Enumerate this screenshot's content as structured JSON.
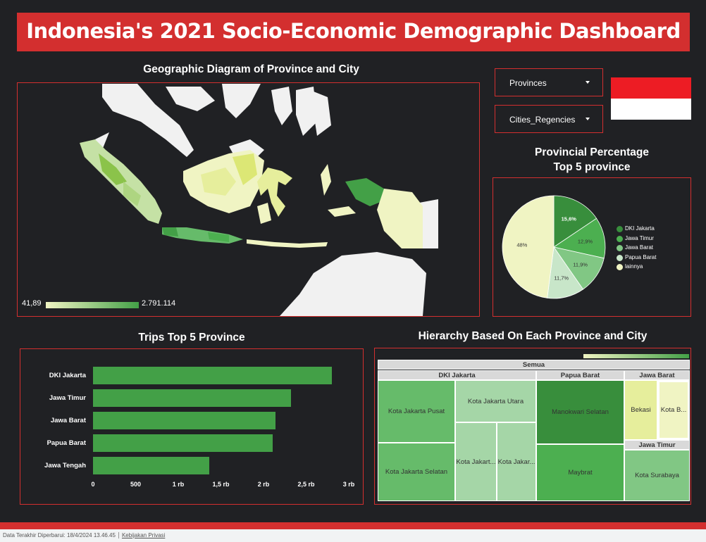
{
  "header": {
    "title": "Indonesia's 2021 Socio-Economic Demographic Dashboard"
  },
  "map": {
    "title": "Geographic Diagram of Province and City",
    "legend_min": "41,89",
    "legend_max": "2.791.114",
    "colors": {
      "low": "#f0f4c3",
      "high": "#43a047"
    }
  },
  "filters": {
    "provinces_label": "Provinces",
    "cities_label": "Cities_Regencies"
  },
  "pie": {
    "title_line1": "Provincial Percentage",
    "title_line2": "Top 5 province"
  },
  "bars": {
    "title": "Trips Top 5 Province"
  },
  "treemap": {
    "title": "Hierarchy Based On Each Province and City",
    "root": "Semua",
    "groups": {
      "dki": "DKI Jakarta",
      "papua": "Papua Barat",
      "jabar": "Jawa Barat",
      "jatim": "Jawa Timur"
    },
    "cells": {
      "pusat": "Kota Jakarta Pusat",
      "utara": "Kota Jakarta Utara",
      "selatan": "Kota Jakarta Selatan",
      "jak1": "Kota Jakart...",
      "jak2": "Kota Jakar...",
      "manokwari": "Manokwari Selatan",
      "maybrat": "Maybrat",
      "bekasi": "Bekasi",
      "kotab": "Kota B...",
      "surabaya": "Kota Surabaya"
    }
  },
  "footer": {
    "updated": "Data Terakhir Diperbarui: 18/4/2024 13.46.45",
    "privacy": "Kebijakan Privasi"
  },
  "chart_data": [
    {
      "type": "pie",
      "title": "Provincial Percentage Top 5 province",
      "categories": [
        "DKI Jakarta",
        "Jawa Timur",
        "Jawa Barat",
        "Papua Barat",
        "lainnya"
      ],
      "values": [
        15.6,
        12.9,
        11.9,
        11.7,
        48.0
      ],
      "value_labels": [
        "15,6%",
        "12,9%",
        "11,9%",
        "11,7%",
        "48%"
      ],
      "colors": [
        "#388e3c",
        "#4caf50",
        "#81c784",
        "#c8e6c9",
        "#f0f4c3"
      ],
      "legend": "right"
    },
    {
      "type": "bar",
      "orientation": "horizontal",
      "title": "Trips Top 5 Province",
      "categories": [
        "DKI Jakarta",
        "Jawa Timur",
        "Jawa Barat",
        "Papua Barat",
        "Jawa Tengah"
      ],
      "values": [
        2800,
        2320,
        2140,
        2110,
        1360
      ],
      "xlim": [
        0,
        3000
      ],
      "ticks": [
        0,
        500,
        1000,
        1500,
        2000,
        2500,
        3000
      ],
      "tick_labels": [
        "0",
        "500",
        "1 rb",
        "1,5 rb",
        "2 rb",
        "2,5 rb",
        "3 rb"
      ],
      "color": "#43a047"
    }
  ]
}
